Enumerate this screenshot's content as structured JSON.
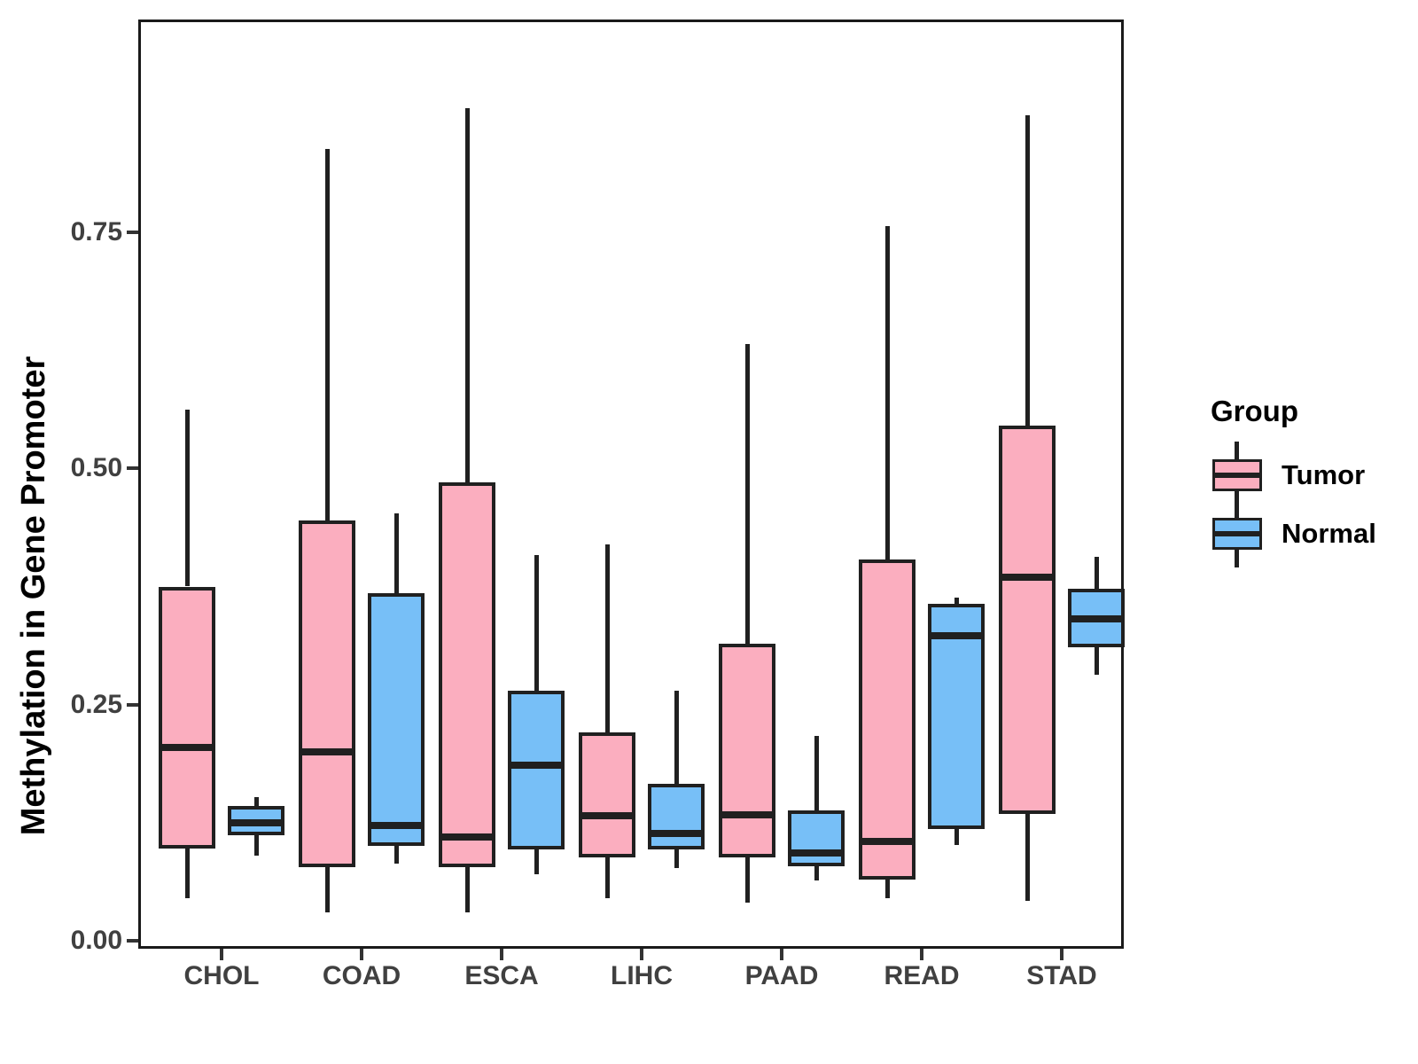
{
  "figure_title": "",
  "y_axis": {
    "title": "Methylation in Gene Promoter",
    "tick_labels": [
      "0.00",
      "0.25",
      "0.50",
      "0.75"
    ],
    "tick_values": [
      0.0,
      0.25,
      0.5,
      0.75
    ]
  },
  "x_axis": {
    "categories": [
      "CHOL",
      "COAD",
      "ESCA",
      "LIHC",
      "PAAD",
      "READ",
      "STAD"
    ]
  },
  "legend": {
    "title": "Group",
    "position": "right-center",
    "entries": [
      {
        "label": "Tumor",
        "color": "#FBAEBF"
      },
      {
        "label": "Normal",
        "color": "#77BFF7"
      }
    ]
  },
  "colors": {
    "tumor_fill": "#FBAEBF",
    "normal_fill": "#77BFF7",
    "box_outline": "#202020",
    "axis_text": "#404040",
    "panel_border": "#1a1a1a"
  },
  "chart_data": {
    "type": "boxplot",
    "title": "",
    "xlabel": "",
    "ylabel": "Methylation in Gene Promoter",
    "ylim": [
      0,
      0.95
    ],
    "yticks": [
      0.0,
      0.25,
      0.5,
      0.75
    ],
    "ytick_labels": [
      "0.00",
      "0.25",
      "0.50",
      "0.75"
    ],
    "grid": false,
    "legend_position": "right-center",
    "categories": [
      "CHOL",
      "COAD",
      "ESCA",
      "LIHC",
      "PAAD",
      "READ",
      "STAD"
    ],
    "box_stats_order": [
      "whisker_min",
      "q1",
      "median",
      "q3",
      "whisker_max"
    ],
    "series": [
      {
        "name": "Tumor",
        "color": "#FBAEBF",
        "boxes": [
          [
            0.045,
            0.098,
            0.205,
            0.375,
            0.562
          ],
          [
            0.03,
            0.078,
            0.2,
            0.445,
            0.838
          ],
          [
            0.03,
            0.078,
            0.11,
            0.485,
            0.881
          ],
          [
            0.045,
            0.088,
            0.132,
            0.221,
            0.42
          ],
          [
            0.04,
            0.088,
            0.133,
            0.314,
            0.632
          ],
          [
            0.045,
            0.065,
            0.105,
            0.404,
            0.757
          ],
          [
            0.042,
            0.134,
            0.385,
            0.545,
            0.874
          ]
        ]
      },
      {
        "name": "Normal",
        "color": "#77BFF7",
        "boxes": [
          [
            0.09,
            0.112,
            0.125,
            0.143,
            0.152
          ],
          [
            0.082,
            0.1,
            0.122,
            0.368,
            0.452
          ],
          [
            0.07,
            0.097,
            0.186,
            0.265,
            0.408
          ],
          [
            0.077,
            0.097,
            0.114,
            0.166,
            0.265
          ],
          [
            0.064,
            0.079,
            0.093,
            0.138,
            0.217
          ],
          [
            0.101,
            0.118,
            0.323,
            0.357,
            0.363
          ],
          [
            0.282,
            0.311,
            0.341,
            0.373,
            0.406
          ]
        ]
      }
    ]
  }
}
